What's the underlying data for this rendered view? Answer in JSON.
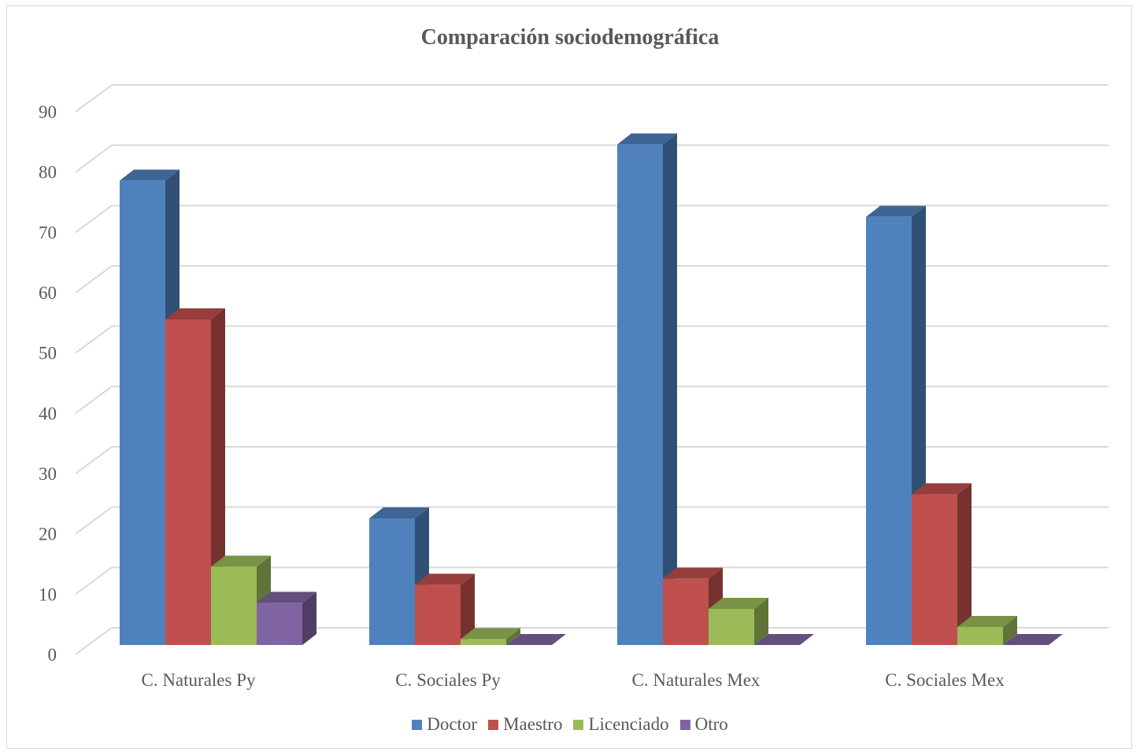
{
  "chart_data": {
    "type": "bar",
    "title": "Comparación sociodemográfica",
    "categories": [
      "C. Naturales Py",
      "C. Sociales Py",
      "C. Naturales Mex",
      "C. Sociales Mex"
    ],
    "series": [
      {
        "name": "Doctor",
        "values": [
          77,
          21,
          83,
          71
        ],
        "color": "#4f81bd"
      },
      {
        "name": "Maestro",
        "values": [
          54,
          10,
          11,
          25
        ],
        "color": "#c0504d"
      },
      {
        "name": "Licenciado",
        "values": [
          13,
          1,
          6,
          3
        ],
        "color": "#9bbb59"
      },
      {
        "name": "Otro",
        "values": [
          7,
          0,
          0,
          0
        ],
        "color": "#8064a2"
      }
    ],
    "yticks": [
      "0",
      "10",
      "20",
      "30",
      "40",
      "50",
      "60",
      "70",
      "80",
      "90"
    ],
    "ylim": [
      0,
      90
    ],
    "grid": true,
    "legend_position": "bottom",
    "style": "3d-clustered-column"
  }
}
